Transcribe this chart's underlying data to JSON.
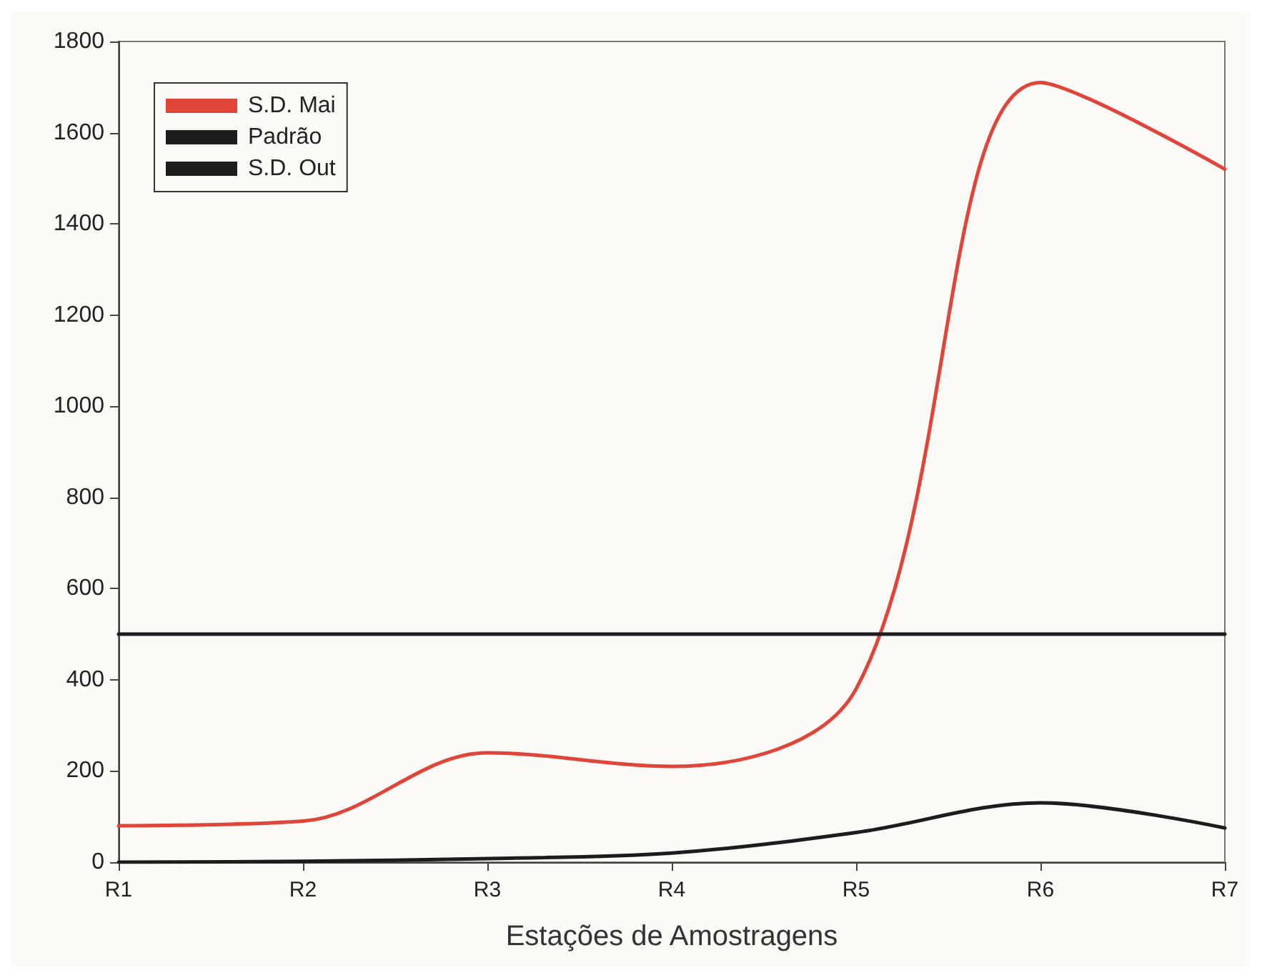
{
  "chart_data": {
    "type": "line",
    "xlabel": "Estações de Amostragens",
    "categories": [
      "R1",
      "R2",
      "R3",
      "R4",
      "R5",
      "R6",
      "R7"
    ],
    "series": [
      {
        "name": "S.D. Mai",
        "color": "#e0453a",
        "values": [
          80,
          90,
          240,
          210,
          380,
          1710,
          1520
        ]
      },
      {
        "name": "Padrão",
        "color": "#1c1c1c",
        "values": [
          500,
          500,
          500,
          500,
          500,
          500,
          500
        ]
      },
      {
        "name": "S.D. Out",
        "color": "#1c1c1c",
        "values": [
          0,
          2,
          8,
          20,
          65,
          130,
          75
        ]
      }
    ],
    "ylim": [
      0,
      1800
    ],
    "yticks": [
      0,
      200,
      400,
      600,
      800,
      1000,
      1200,
      1400,
      1600,
      1800
    ],
    "grid": false,
    "legend": "top left",
    "marker": "none",
    "line_style": "solid"
  }
}
